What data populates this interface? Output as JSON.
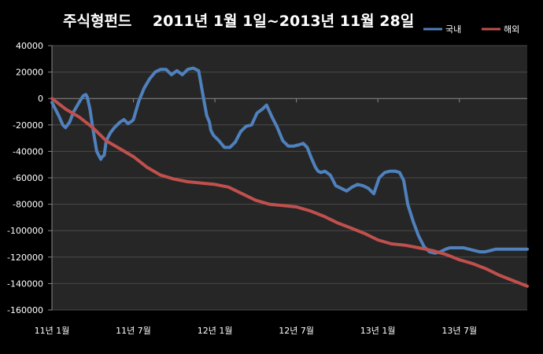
{
  "chart_data": {
    "type": "line",
    "title": "주식형펀드    2011년 1월 1일~2013년 11월 28일",
    "xlabel": "",
    "ylabel": "",
    "ylim": [
      -160000,
      40000
    ],
    "yticks": [
      40000,
      20000,
      0,
      -20000,
      -40000,
      -60000,
      -80000,
      -100000,
      -120000,
      -140000,
      -160000
    ],
    "ytick_labels": [
      "40000",
      "20000",
      "0",
      "-20000",
      "-40000",
      "-60000",
      "-80000",
      "-100000",
      "-120000",
      "-140000",
      "-160000"
    ],
    "x_unit": "month",
    "xlim": [
      0,
      35
    ],
    "xticks": [
      0,
      6,
      12,
      18,
      24,
      30
    ],
    "xtick_labels": [
      "11년 1월",
      "11년 7월",
      "12년 1월",
      "12년 7월",
      "13년 1월",
      "13년 7월"
    ],
    "grid": true,
    "legend_position": "top-right",
    "series": [
      {
        "name": "국내",
        "color": "#4f81bd",
        "x": [
          0,
          0.5,
          0.8,
          1.0,
          1.3,
          1.6,
          2.0,
          2.3,
          2.5,
          2.6,
          2.8,
          3.0,
          3.3,
          3.6,
          3.7,
          3.85,
          4.0,
          4.3,
          4.6,
          5.0,
          5.3,
          5.6,
          5.9,
          6.0,
          6.4,
          6.8,
          7.2,
          7.6,
          8.0,
          8.4,
          8.8,
          9.2,
          9.6,
          10.0,
          10.4,
          10.8,
          11.2,
          11.4,
          11.6,
          11.7,
          11.9,
          12.3,
          12.7,
          13.1,
          13.5,
          13.9,
          14.3,
          14.7,
          15.1,
          15.5,
          15.8,
          16.2,
          16.6,
          17.0,
          17.4,
          17.8,
          18.2,
          18.5,
          18.8,
          19.1,
          19.4,
          19.6,
          19.8,
          20.1,
          20.5,
          20.9,
          21.3,
          21.7,
          22.1,
          22.5,
          22.9,
          23.3,
          23.7,
          24.1,
          24.5,
          24.9,
          25.3,
          25.6,
          25.9,
          26.2,
          26.6,
          27.0,
          27.4,
          27.8,
          28.2,
          28.6,
          29.0,
          29.3,
          29.6,
          29.9,
          30.3,
          30.7,
          31.1,
          31.5,
          31.9,
          32.3,
          32.7,
          33.1,
          33.4,
          33.7,
          34.0,
          34.3,
          34.6,
          34.9,
          35.0
        ],
        "values": [
          -3000,
          -13000,
          -20000,
          -22000,
          -18000,
          -10000,
          -3000,
          2000,
          3000,
          1000,
          -8000,
          -22000,
          -40000,
          -46000,
          -44000,
          -43000,
          -32000,
          -26000,
          -22000,
          -18000,
          -16000,
          -19000,
          -17000,
          -16000,
          -2000,
          8000,
          15000,
          20000,
          22000,
          22000,
          18000,
          21000,
          18000,
          22000,
          23000,
          21000,
          -2000,
          -13000,
          -18000,
          -24000,
          -28000,
          -32000,
          -37000,
          -37000,
          -33000,
          -25000,
          -21000,
          -20000,
          -11000,
          -8000,
          -5000,
          -14000,
          -22000,
          -32000,
          -36000,
          -36000,
          -35000,
          -34000,
          -37000,
          -45000,
          -52000,
          -55000,
          -56000,
          -55000,
          -58000,
          -66000,
          -68000,
          -70000,
          -67000,
          -65000,
          -66000,
          -68000,
          -72000,
          -60000,
          -56000,
          -55000,
          -55000,
          -56000,
          -62000,
          -80000,
          -93000,
          -104000,
          -112000,
          -116000,
          -117000,
          -116000,
          -114000,
          -113000,
          -113000,
          -113000,
          -113000,
          -114000,
          -115000,
          -116000,
          -116000,
          -115000,
          -114000,
          -114000,
          -114000,
          -114000,
          -114000,
          -114000,
          -114000,
          -114000,
          -114000
        ]
      },
      {
        "name": "해외",
        "color": "#c0504d",
        "x": [
          0,
          1,
          2,
          3,
          4,
          5,
          6,
          7,
          8,
          9,
          10,
          11,
          12,
          13,
          14,
          15,
          16,
          17,
          18,
          19,
          20,
          21,
          22,
          23,
          24,
          25,
          26,
          27,
          28,
          29,
          30,
          31,
          32,
          33,
          34,
          35
        ],
        "values": [
          0,
          -8000,
          -14000,
          -22000,
          -32000,
          -38000,
          -44000,
          -52000,
          -58000,
          -61000,
          -63000,
          -64000,
          -65000,
          -67000,
          -72000,
          -77000,
          -80000,
          -81000,
          -82000,
          -85000,
          -89000,
          -94000,
          -98000,
          -102000,
          -107000,
          -110000,
          -111000,
          -113000,
          -115000,
          -118000,
          -122000,
          -125000,
          -129000,
          -134000,
          -138000,
          -142000
        ]
      }
    ]
  }
}
